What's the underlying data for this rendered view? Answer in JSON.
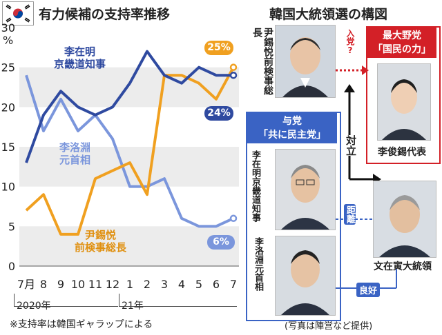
{
  "header": {
    "chart_title": "有力候補の支持率推移",
    "diagram_title": "韓国大統領選の構図"
  },
  "footer": {
    "note": "※支持率は韓国ギャラップによる",
    "credit": "(写真は陣営など提供)"
  },
  "chart_data": {
    "type": "line",
    "categories": [
      "7月",
      "8",
      "9",
      "10",
      "11",
      "12",
      "1",
      "2",
      "3",
      "4",
      "5",
      "6",
      "7"
    ],
    "year_labels": [
      "2020年",
      "21年"
    ],
    "ylim": [
      0,
      30
    ],
    "yticks": [
      0,
      5,
      10,
      15,
      20,
      25,
      30
    ],
    "yunit": "%",
    "series": [
      {
        "name": "李在明京畿道知事",
        "color": "#2f4aa0",
        "values": [
          13,
          19,
          22,
          20,
          19,
          20,
          23,
          27,
          24,
          23,
          25,
          24,
          24
        ],
        "end_label": "24%"
      },
      {
        "name": "尹錫悦前検事総長",
        "color": "#f0a020",
        "values": [
          7,
          9,
          4,
          4,
          11,
          12,
          13,
          9,
          24,
          24,
          23,
          21,
          25
        ],
        "end_label": "25%"
      },
      {
        "name": "李洛淵元首相",
        "color": "#7b96dc",
        "values": [
          24,
          17,
          21,
          17,
          19,
          16,
          10,
          10,
          11,
          6,
          5,
          5,
          6
        ],
        "end_label": "6%"
      }
    ],
    "series_labels": {
      "lee_jm": "李在明\n京畿道知事",
      "lee_ny": "李洛淵\n元首相",
      "yoon": "尹錫悦\n前検事総長"
    }
  },
  "diagram": {
    "yoon_label": "尹錫悦前検事総長",
    "opposition_party": "最大野党\n「国民の力」",
    "opposition_leader": "李俊錫代表",
    "join_question": "入党?",
    "ruling_party": "与党\n「共に民主党」",
    "lee_jm_label": "李在明京畿道知事",
    "lee_ny_label": "李洛淵元首相",
    "confront": "対立",
    "distance": "距離",
    "good_relation": "良好",
    "president": "文在寅大統領",
    "flag": "korea-flag"
  },
  "colors": {
    "lee_jm": "#2f4aa0",
    "yoon": "#f0a020",
    "lee_ny": "#7b96dc",
    "opposition_red": "#d32027",
    "ruling_blue": "#3a63c4",
    "band": "#ececec"
  }
}
